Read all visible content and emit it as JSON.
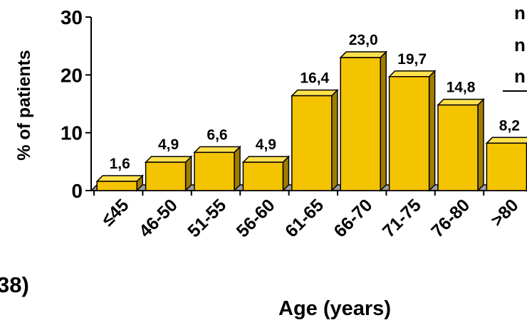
{
  "chart_data": {
    "type": "bar",
    "title": "",
    "xlabel": "Age (years)",
    "ylabel": "% of patients",
    "categories": [
      "≤45",
      "46-50",
      "51-55",
      "56-60",
      "61-65",
      "66-70",
      "71-75",
      "76-80",
      ">80"
    ],
    "values": [
      1.6,
      4.9,
      6.6,
      4.9,
      16.4,
      23.0,
      19.7,
      14.8,
      8.2
    ],
    "value_labels": [
      "1,6",
      "4,9",
      "6,6",
      "4,9",
      "16,4",
      "23,0",
      "19,7",
      "14,8",
      "8,2"
    ],
    "ylim": [
      0,
      30
    ],
    "yticks": [
      0,
      10,
      20,
      30
    ],
    "grid": false,
    "legend": "none",
    "bar_color": "#f5c400",
    "bar_side_color": "#a07c00",
    "bar_top_color": "#ffe14d"
  },
  "fragments": {
    "left_edge_text": "38)",
    "right_edge_lines": [
      "n",
      "n",
      "n"
    ]
  }
}
